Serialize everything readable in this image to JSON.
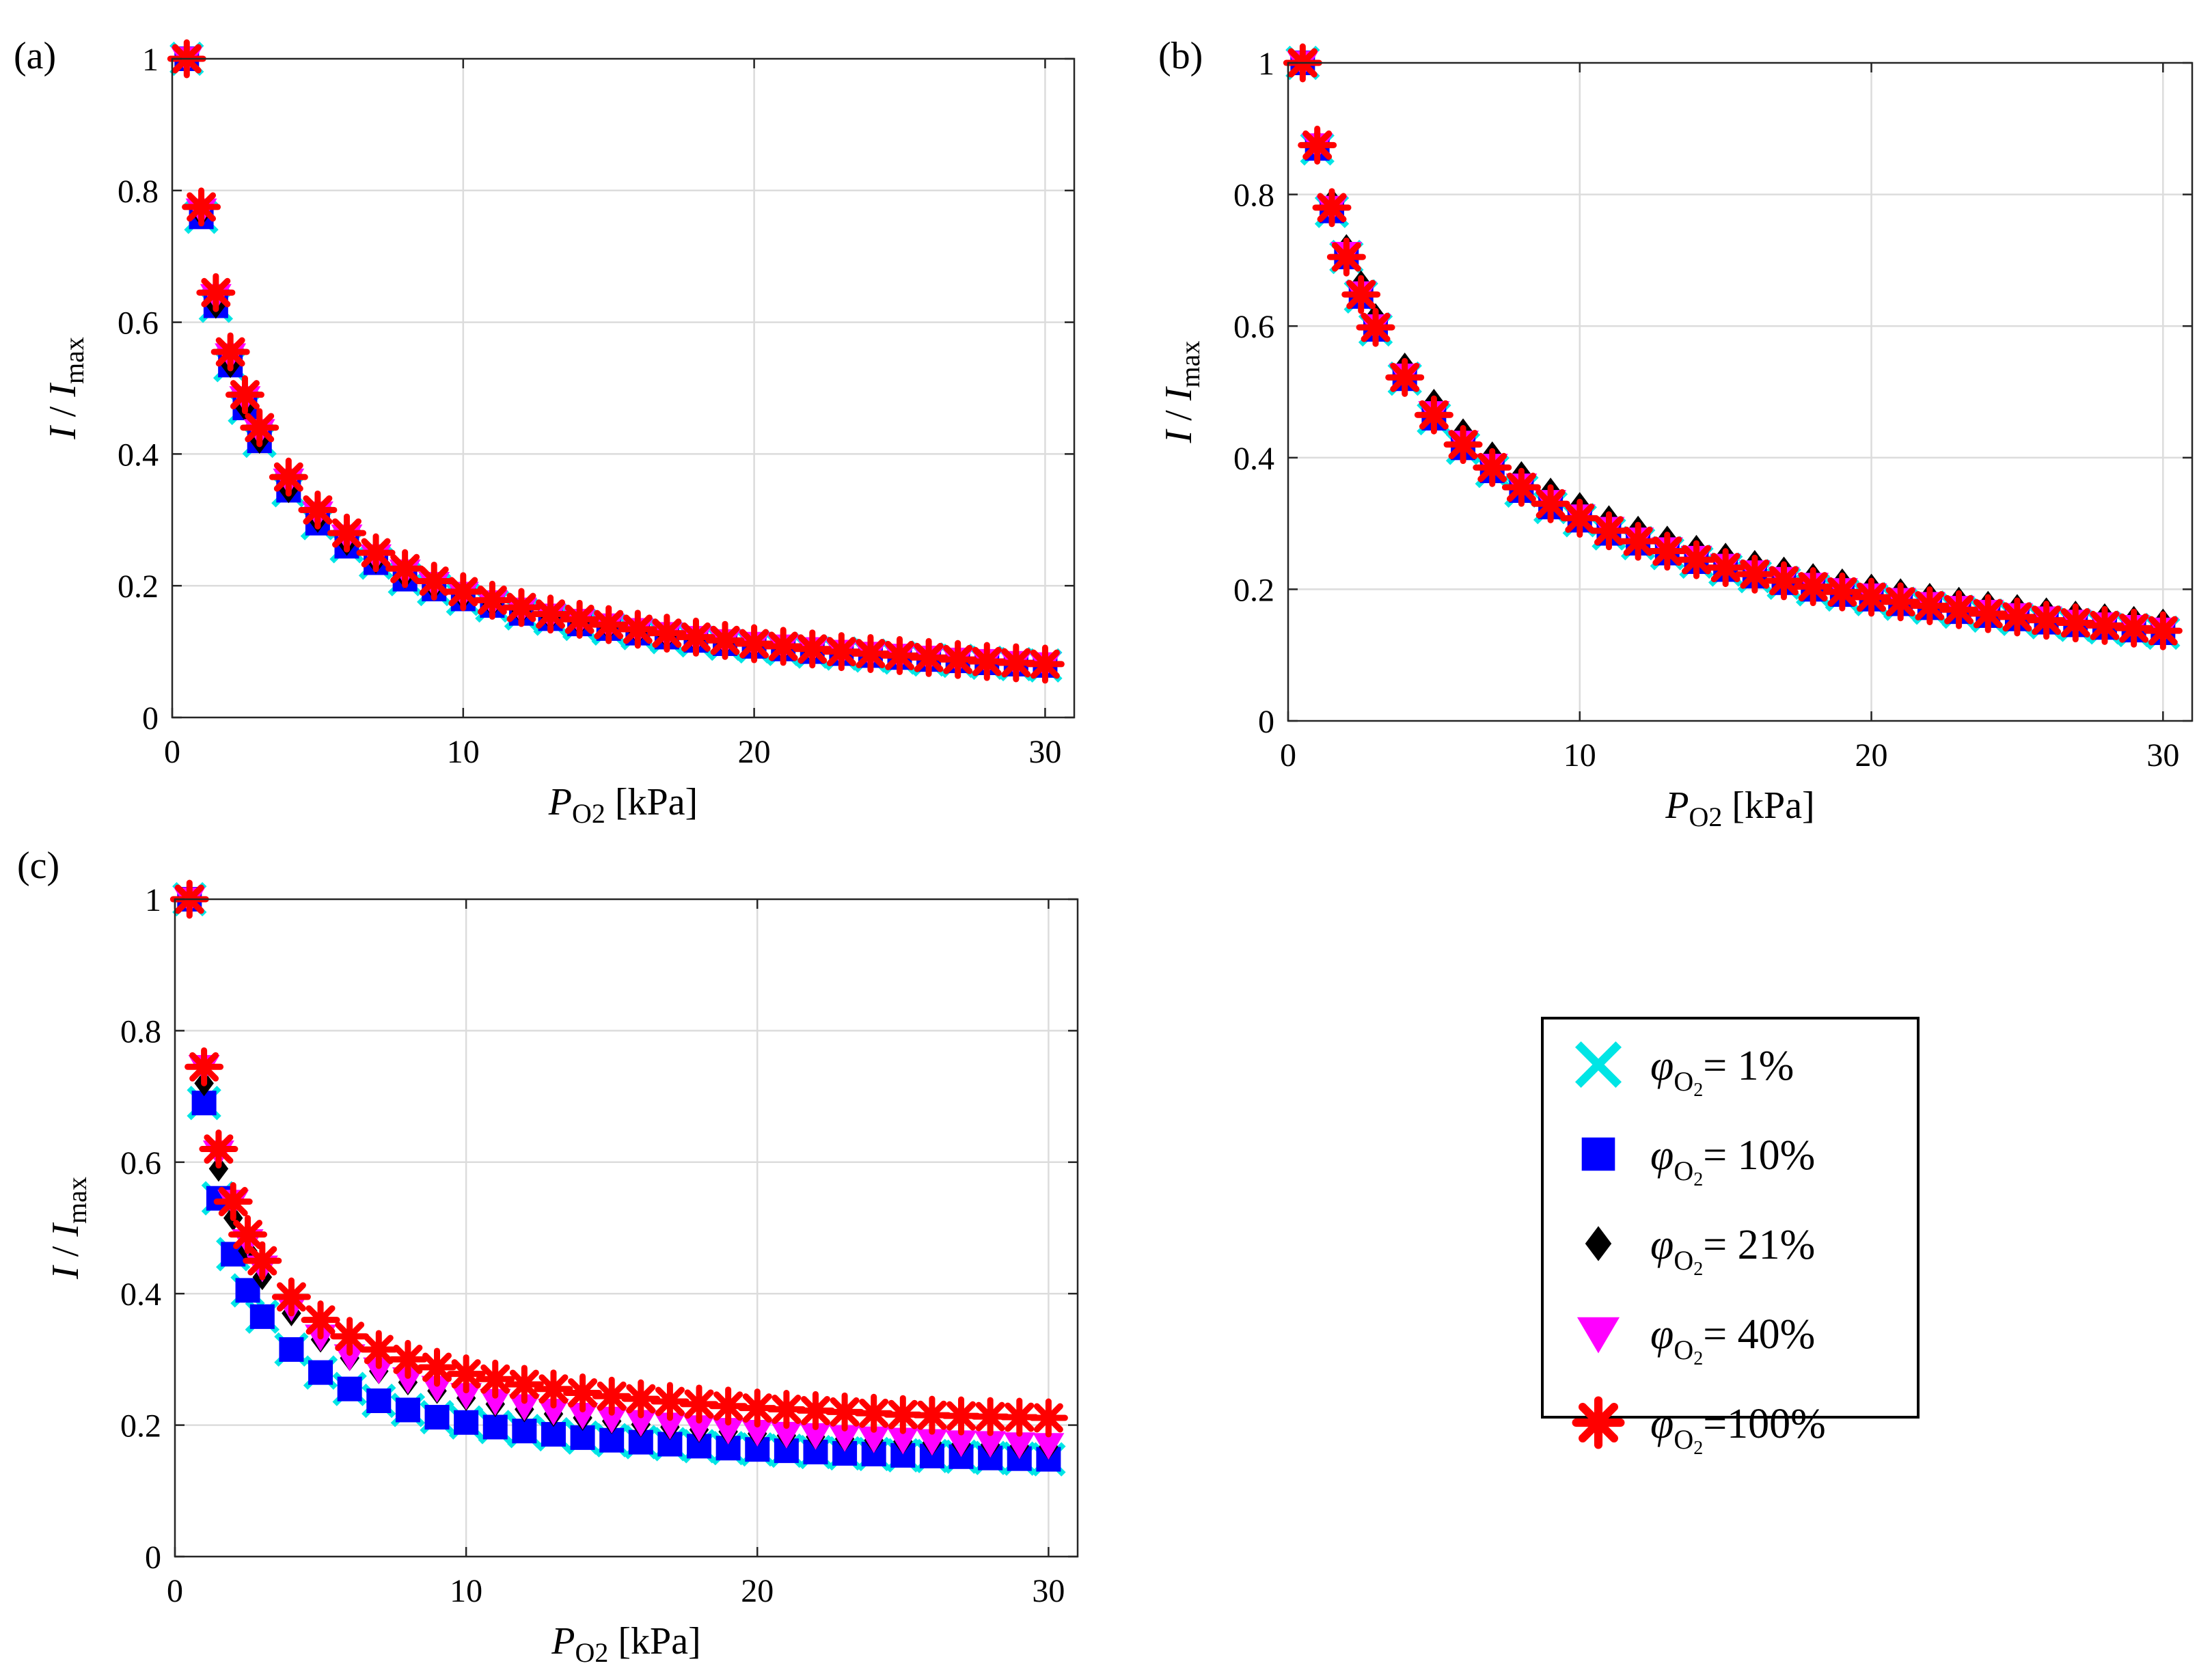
{
  "figure": {
    "panels": [
      "a",
      "b",
      "c"
    ],
    "xlabel_symbol": "P",
    "xlabel_sub": "O2",
    "xlabel_unit": " [kPa]",
    "ylabel_num": "I",
    "ylabel_sep": " / ",
    "ylabel_den": "I",
    "ylabel_den_sub": "max"
  },
  "legend": {
    "symbol": "φ",
    "sub": "O",
    "sub2": "2",
    "entries": [
      {
        "marker": "x-mark",
        "color": "#00E5E5",
        "value": "= 1%"
      },
      {
        "marker": "square",
        "color": "#0000FF",
        "value": "= 10%"
      },
      {
        "marker": "diamond",
        "color": "#000000",
        "value": "= 21%"
      },
      {
        "marker": "triangle-down",
        "color": "#FF00FF",
        "value": "= 40%"
      },
      {
        "marker": "asterisk",
        "color": "#FF0000",
        "value": "=100%"
      }
    ]
  },
  "chart_data": [
    {
      "type": "scatter",
      "panel_label": "(a)",
      "title": "",
      "xlabel": "P_O2 [kPa]",
      "ylabel": "I / I_max",
      "xlim": [
        0,
        31
      ],
      "ylim": [
        0,
        1
      ],
      "xticks": [
        0,
        10,
        20,
        30
      ],
      "yticks": [
        0,
        0.2,
        0.4,
        0.6,
        0.8,
        1
      ],
      "ytick_labels": [
        "0",
        "0.2",
        "0.4",
        "0.6",
        "0.8",
        "1"
      ],
      "grid": true,
      "x": [
        0.5,
        1,
        1.5,
        2,
        2.5,
        3,
        4,
        5,
        6,
        7,
        8,
        9,
        10,
        11,
        12,
        13,
        14,
        15,
        16,
        17,
        18,
        19,
        20,
        21,
        22,
        23,
        24,
        25,
        26,
        27,
        28,
        29,
        30
      ],
      "series": [
        {
          "name": "φO2 = 1%",
          "values": [
            1.0,
            0.76,
            0.625,
            0.535,
            0.47,
            0.42,
            0.345,
            0.295,
            0.26,
            0.235,
            0.21,
            0.195,
            0.18,
            0.17,
            0.158,
            0.15,
            0.142,
            0.135,
            0.128,
            0.122,
            0.117,
            0.112,
            0.108,
            0.104,
            0.1,
            0.097,
            0.094,
            0.091,
            0.088,
            0.086,
            0.083,
            0.081,
            0.079
          ]
        },
        {
          "name": "φO2 = 10%",
          "values": [
            1.0,
            0.76,
            0.625,
            0.535,
            0.47,
            0.42,
            0.345,
            0.295,
            0.26,
            0.235,
            0.21,
            0.195,
            0.18,
            0.17,
            0.158,
            0.15,
            0.142,
            0.135,
            0.128,
            0.122,
            0.117,
            0.112,
            0.108,
            0.104,
            0.1,
            0.097,
            0.094,
            0.091,
            0.088,
            0.086,
            0.083,
            0.081,
            0.079
          ]
        },
        {
          "name": "φO2 = 21%",
          "values": [
            1.0,
            0.765,
            0.625,
            0.535,
            0.47,
            0.42,
            0.345,
            0.3,
            0.265,
            0.238,
            0.215,
            0.198,
            0.183,
            0.172,
            0.161,
            0.152,
            0.144,
            0.137,
            0.13,
            0.124,
            0.119,
            0.114,
            0.11,
            0.106,
            0.102,
            0.099,
            0.096,
            0.093,
            0.09,
            0.088,
            0.085,
            0.083,
            0.081
          ]
        },
        {
          "name": "φO2 = 40%",
          "values": [
            1.0,
            0.77,
            0.64,
            0.55,
            0.485,
            0.435,
            0.36,
            0.31,
            0.275,
            0.245,
            0.222,
            0.203,
            0.188,
            0.175,
            0.164,
            0.155,
            0.147,
            0.14,
            0.133,
            0.127,
            0.121,
            0.116,
            0.112,
            0.108,
            0.104,
            0.1,
            0.097,
            0.094,
            0.091,
            0.088,
            0.086,
            0.083,
            0.081
          ]
        },
        {
          "name": "φO2 = 100%",
          "values": [
            1.0,
            0.775,
            0.645,
            0.555,
            0.49,
            0.44,
            0.365,
            0.315,
            0.28,
            0.25,
            0.226,
            0.207,
            0.191,
            0.178,
            0.167,
            0.157,
            0.149,
            0.141,
            0.134,
            0.128,
            0.122,
            0.117,
            0.112,
            0.108,
            0.104,
            0.1,
            0.097,
            0.094,
            0.091,
            0.088,
            0.085,
            0.083,
            0.081
          ]
        }
      ]
    },
    {
      "type": "scatter",
      "panel_label": "(b)",
      "title": "",
      "xlabel": "P_O2 [kPa]",
      "ylabel": "I / I_max",
      "xlim": [
        0,
        31
      ],
      "ylim": [
        0,
        1
      ],
      "xticks": [
        0,
        10,
        20,
        30
      ],
      "yticks": [
        0,
        0.2,
        0.4,
        0.6,
        0.8,
        1
      ],
      "ytick_labels": [
        "0",
        "0.2",
        "0.4",
        "0.6",
        "0.8",
        "1"
      ],
      "grid": true,
      "x": [
        0.5,
        1,
        1.5,
        2,
        2.5,
        3,
        4,
        5,
        6,
        7,
        8,
        9,
        10,
        11,
        12,
        13,
        14,
        15,
        16,
        17,
        18,
        19,
        20,
        21,
        22,
        23,
        24,
        25,
        26,
        27,
        28,
        29,
        30
      ],
      "series": [
        {
          "name": "φO2 = 1%",
          "values": [
            1.0,
            0.87,
            0.775,
            0.705,
            0.645,
            0.595,
            0.52,
            0.46,
            0.415,
            0.38,
            0.35,
            0.325,
            0.305,
            0.285,
            0.27,
            0.255,
            0.242,
            0.23,
            0.22,
            0.21,
            0.2,
            0.192,
            0.185,
            0.178,
            0.172,
            0.166,
            0.16,
            0.155,
            0.15,
            0.146,
            0.142,
            0.138,
            0.134
          ]
        },
        {
          "name": "φO2 = 10%",
          "values": [
            1.0,
            0.87,
            0.775,
            0.705,
            0.645,
            0.595,
            0.52,
            0.46,
            0.415,
            0.38,
            0.35,
            0.325,
            0.305,
            0.285,
            0.27,
            0.255,
            0.242,
            0.23,
            0.22,
            0.21,
            0.2,
            0.192,
            0.185,
            0.178,
            0.172,
            0.166,
            0.16,
            0.155,
            0.15,
            0.146,
            0.142,
            0.138,
            0.134
          ]
        },
        {
          "name": "φO2 = 21%",
          "values": [
            1.0,
            0.88,
            0.79,
            0.72,
            0.665,
            0.615,
            0.54,
            0.485,
            0.44,
            0.405,
            0.375,
            0.35,
            0.328,
            0.308,
            0.292,
            0.277,
            0.263,
            0.251,
            0.24,
            0.23,
            0.22,
            0.212,
            0.204,
            0.197,
            0.19,
            0.184,
            0.178,
            0.173,
            0.168,
            0.163,
            0.159,
            0.155,
            0.151
          ]
        },
        {
          "name": "φO2 = 40%",
          "values": [
            1.0,
            0.875,
            0.78,
            0.71,
            0.65,
            0.6,
            0.525,
            0.468,
            0.423,
            0.388,
            0.358,
            0.333,
            0.311,
            0.292,
            0.276,
            0.261,
            0.248,
            0.236,
            0.226,
            0.216,
            0.207,
            0.199,
            0.191,
            0.184,
            0.178,
            0.172,
            0.166,
            0.161,
            0.156,
            0.151,
            0.147,
            0.143,
            0.139
          ]
        },
        {
          "name": "φO2 = 100%",
          "values": [
            1.0,
            0.875,
            0.78,
            0.705,
            0.648,
            0.598,
            0.522,
            0.465,
            0.42,
            0.385,
            0.355,
            0.33,
            0.308,
            0.289,
            0.273,
            0.258,
            0.245,
            0.233,
            0.223,
            0.213,
            0.204,
            0.196,
            0.188,
            0.181,
            0.175,
            0.169,
            0.163,
            0.158,
            0.153,
            0.149,
            0.145,
            0.141,
            0.137
          ]
        }
      ]
    },
    {
      "type": "scatter",
      "panel_label": "(c)",
      "title": "",
      "xlabel": "P_O2 [kPa]",
      "ylabel": "I / I_max",
      "xlim": [
        0,
        31
      ],
      "ylim": [
        0,
        1
      ],
      "xticks": [
        0,
        10,
        20,
        30
      ],
      "yticks": [
        0,
        0.2,
        0.4,
        0.6,
        0.8,
        1
      ],
      "ytick_labels": [
        "0",
        "0.2",
        "0.4",
        "0.6",
        "0.8",
        "1"
      ],
      "grid": true,
      "x": [
        0.5,
        1,
        1.5,
        2,
        2.5,
        3,
        4,
        5,
        6,
        7,
        8,
        9,
        10,
        11,
        12,
        13,
        14,
        15,
        16,
        17,
        18,
        19,
        20,
        21,
        22,
        23,
        24,
        25,
        26,
        27,
        28,
        29,
        30
      ],
      "series": [
        {
          "name": "φO2 = 1%",
          "values": [
            1.0,
            0.69,
            0.545,
            0.46,
            0.405,
            0.365,
            0.315,
            0.28,
            0.255,
            0.237,
            0.223,
            0.212,
            0.204,
            0.197,
            0.191,
            0.186,
            0.181,
            0.177,
            0.174,
            0.171,
            0.168,
            0.165,
            0.163,
            0.161,
            0.159,
            0.157,
            0.156,
            0.154,
            0.153,
            0.152,
            0.15,
            0.149,
            0.148
          ]
        },
        {
          "name": "φO2 = 10%",
          "values": [
            1.0,
            0.69,
            0.545,
            0.46,
            0.405,
            0.365,
            0.315,
            0.28,
            0.255,
            0.237,
            0.223,
            0.212,
            0.204,
            0.197,
            0.191,
            0.186,
            0.181,
            0.177,
            0.174,
            0.171,
            0.168,
            0.165,
            0.163,
            0.161,
            0.159,
            0.157,
            0.156,
            0.154,
            0.153,
            0.152,
            0.15,
            0.149,
            0.148
          ]
        },
        {
          "name": "φO2 = 21%",
          "values": [
            1.0,
            0.72,
            0.59,
            0.515,
            0.465,
            0.425,
            0.37,
            0.33,
            0.302,
            0.282,
            0.265,
            0.252,
            0.241,
            0.232,
            0.224,
            0.217,
            0.211,
            0.206,
            0.201,
            0.197,
            0.193,
            0.19,
            0.187,
            0.184,
            0.182,
            0.179,
            0.177,
            0.175,
            0.173,
            0.171,
            0.17,
            0.168,
            0.167
          ]
        },
        {
          "name": "φO2 = 40%",
          "values": [
            1.0,
            0.745,
            0.615,
            0.54,
            0.48,
            0.44,
            0.38,
            0.335,
            0.305,
            0.285,
            0.27,
            0.257,
            0.246,
            0.237,
            0.229,
            0.222,
            0.216,
            0.21,
            0.205,
            0.201,
            0.197,
            0.193,
            0.19,
            0.187,
            0.185,
            0.182,
            0.18,
            0.178,
            0.176,
            0.174,
            0.173,
            0.171,
            0.17
          ]
        },
        {
          "name": "φO2 = 100%",
          "values": [
            1.0,
            0.745,
            0.62,
            0.54,
            0.49,
            0.45,
            0.395,
            0.36,
            0.335,
            0.315,
            0.3,
            0.288,
            0.278,
            0.27,
            0.262,
            0.255,
            0.249,
            0.244,
            0.24,
            0.236,
            0.232,
            0.229,
            0.226,
            0.224,
            0.222,
            0.22,
            0.218,
            0.216,
            0.215,
            0.214,
            0.213,
            0.212,
            0.211
          ]
        }
      ]
    }
  ]
}
